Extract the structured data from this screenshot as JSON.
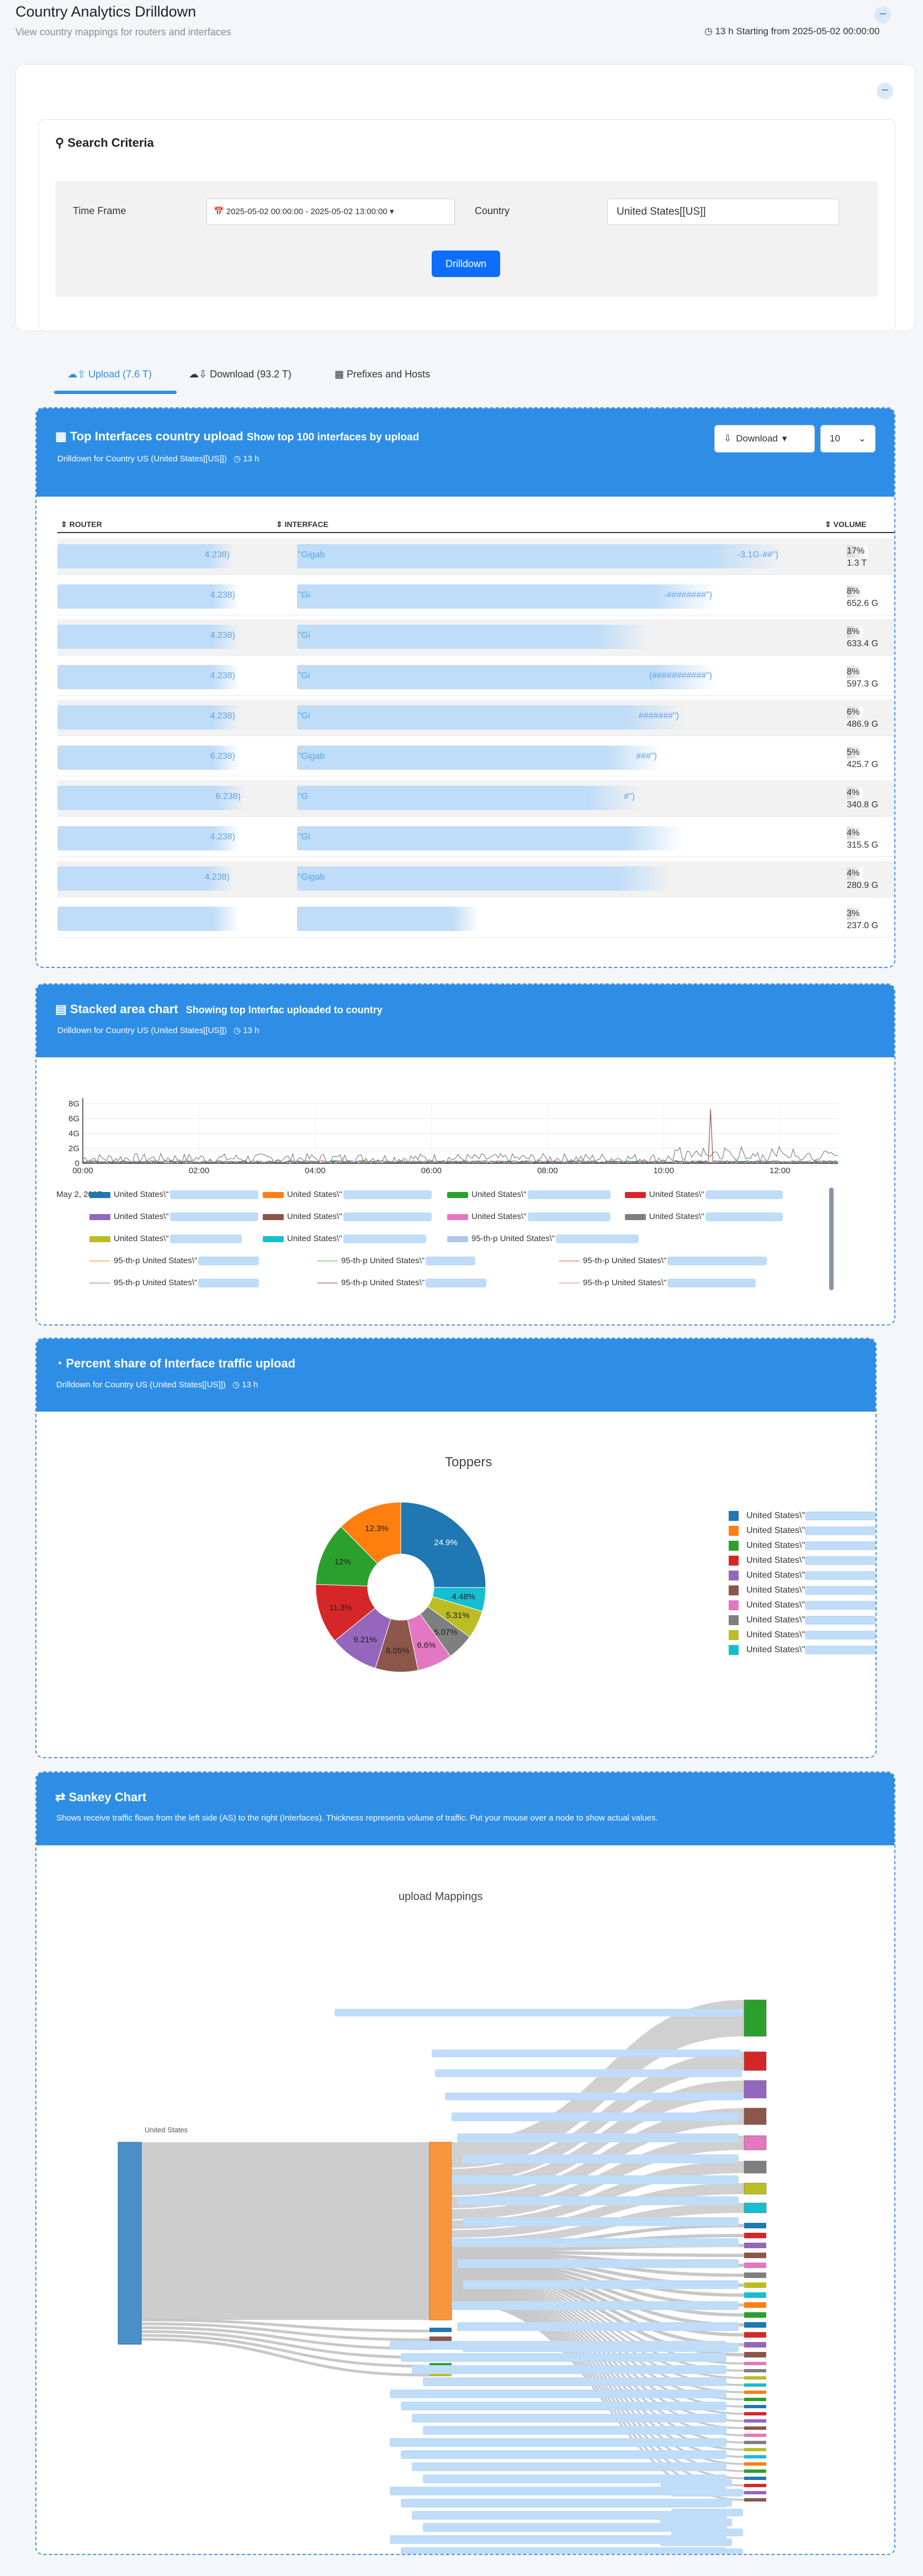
{
  "page": {
    "title": "Country Analytics Drilldown",
    "subtitle": "View country mappings for routers and interfaces",
    "time_info": "13 h Starting from 2025-05-02 00:00:00"
  },
  "search": {
    "title": "Search Criteria",
    "timeframe_label": "Time Frame",
    "timeframe_value": "2025-05-02 00:00:00 - 2025-05-02 13:00:00",
    "country_label": "Country",
    "country_value": "United States[[US]]",
    "drilldown_label": "Drilldown"
  },
  "tabs": [
    {
      "label": "Upload (7.6 T)"
    },
    {
      "label": "Download (93.2 T)"
    },
    {
      "label": "Prefixes and Hosts"
    }
  ],
  "top_interfaces": {
    "title": "Top Interfaces country upload",
    "title_suffix": "Show top 100 interfaces by upload",
    "subtitle": "Drilldown for Country US (United States[[US]])",
    "duration": "13 h",
    "download_label": "Download",
    "page_size": "10",
    "col_router": "ROUTER",
    "col_interface": "INTERFACE",
    "col_volume": "VOLUME",
    "rows": [
      {
        "router_tail": "4.238)",
        "iface_head": "\"Gigab",
        "iface_tail": "-3.1G-##\")",
        "pct": "17%",
        "vol": "1.3 T"
      },
      {
        "router_tail": "4.238)",
        "iface_head": "\"Gi",
        "iface_tail": "-########\")",
        "pct": "8%",
        "vol": "652.6 G"
      },
      {
        "router_tail": "4.238)",
        "iface_head": "\"Gi",
        "iface_tail": "",
        "pct": "8%",
        "vol": "633.4 G"
      },
      {
        "router_tail": "4.238)",
        "iface_head": "\"Gi",
        "iface_tail": "(###########\")",
        "pct": "8%",
        "vol": "597.3 G"
      },
      {
        "router_tail": "4.238)",
        "iface_head": "\"Gi",
        "iface_tail": "#######\")",
        "pct": "6%",
        "vol": "486.9 G"
      },
      {
        "router_tail": "6.238)",
        "iface_head": "\"Gigab",
        "iface_tail": "###\")",
        "pct": "5%",
        "vol": "425.7 G"
      },
      {
        "router_tail": "6.238)",
        "iface_head": "\"G",
        "iface_tail": "#\")",
        "pct": "4%",
        "vol": "340.8 G"
      },
      {
        "router_tail": "4.238)",
        "iface_head": "\"Gi",
        "iface_tail": "",
        "pct": "4%",
        "vol": "315.5 G"
      },
      {
        "router_tail": "4.238)",
        "iface_head": "\"Gigab",
        "iface_tail": "",
        "pct": "4%",
        "vol": "280.9 G"
      },
      {
        "router_tail": "",
        "iface_head": "",
        "iface_tail": "",
        "pct": "3%",
        "vol": "237.0 G"
      }
    ]
  },
  "stacked": {
    "title": "Stacked area chart",
    "title_suffix": "Showing top Interfac uploaded to country",
    "subtitle": "Drilldown for Country US (United States[[US]])",
    "duration": "13 h",
    "date_label": "May 2, 2025",
    "legend": [
      {
        "label": "United States\\\"",
        "color": "#1f77b4"
      },
      {
        "label": "United States\\\"",
        "color": "#ff7f0e"
      },
      {
        "label": "United States\\\"",
        "color": "#2ca02c"
      },
      {
        "label": "United States\\\"",
        "color": "#d62728"
      },
      {
        "label": "United States\\\"",
        "color": "#9467bd"
      },
      {
        "label": "United States\\\"",
        "color": "#8c564b"
      },
      {
        "label": "United States\\\"",
        "color": "#e377c2"
      },
      {
        "label": "United States\\\"",
        "color": "#7f7f7f"
      },
      {
        "label": "United States\\\"",
        "color": "#bcbd22"
      },
      {
        "label": "United States\\\"",
        "color": "#17becf"
      },
      {
        "label": "95-th-p United States\\\"",
        "color": "#aec7e8"
      },
      {
        "label": "95-th-p United States\\\"",
        "color": "#ffbb78"
      },
      {
        "label": "95-th-p United States\\\"",
        "color": "#98df8a"
      },
      {
        "label": "95-th-p United States\\\"",
        "color": "#ff9896"
      },
      {
        "label": "95-th-p United States\\\"",
        "color": "#c5b0d5"
      },
      {
        "label": "95-th-p United States\\\"",
        "color": "#c49c94"
      },
      {
        "label": "95-th-p United States\\\"",
        "color": "#f7b6d2"
      }
    ]
  },
  "pie": {
    "title": "Percent share of Interface traffic upload",
    "subtitle": "Drilldown for Country US (United States[[US]])",
    "duration": "13 h",
    "chart_title": "Toppers",
    "legend_label": "United States\\\"",
    "colors": [
      "#1f77b4",
      "#ff7f0e",
      "#2ca02c",
      "#d62728",
      "#9467bd",
      "#8c564b",
      "#e377c2",
      "#7f7f7f",
      "#bcbd22",
      "#17becf"
    ]
  },
  "sankey": {
    "title": "Sankey Chart",
    "subtitle": "Shows receive traffic flows from the left side (AS) to the right (Interfaces). Thickness represents volume of traffic. Put your mouse over a node to show actual values.",
    "chart_title": "upload Mappings",
    "source_label": "United States"
  },
  "chart_data": [
    {
      "type": "area",
      "x_ticks": [
        "00:00",
        "02:00",
        "04:00",
        "06:00",
        "08:00",
        "10:00",
        "12:00"
      ],
      "y_ticks": [
        "0",
        "2G",
        "4G",
        "6G",
        "8G"
      ],
      "ylim": [
        0,
        8
      ],
      "yunit": "G",
      "xlabel": "",
      "ylabel": ""
    },
    {
      "type": "pie",
      "title": "Toppers",
      "values": [
        24.9,
        4.48,
        5.31,
        5.07,
        6.6,
        8.05,
        9.21,
        11.3,
        12.0,
        12.3
      ],
      "labels": [
        "24.9%",
        "4.48%",
        "5.31%",
        "5.07%",
        "6.6%",
        "8.05%",
        "9.21%",
        "11.3%",
        "12%",
        "12.3%"
      ],
      "colors": [
        "#1f77b4",
        "#17becf",
        "#bcbd22",
        "#7f7f7f",
        "#e377c2",
        "#8c564b",
        "#9467bd",
        "#d62728",
        "#2ca02c",
        "#ff7f0e"
      ]
    }
  ]
}
